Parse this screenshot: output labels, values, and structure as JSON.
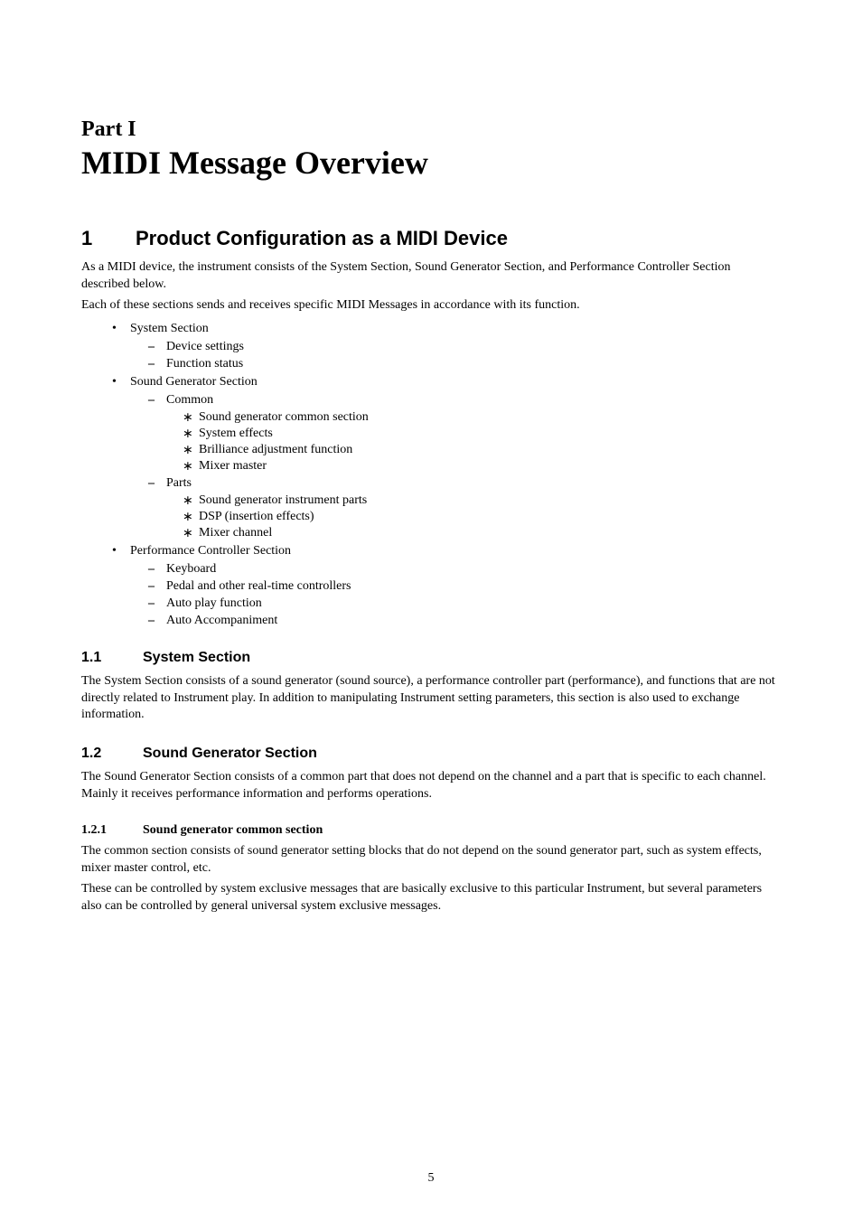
{
  "part": {
    "label": "Part I",
    "title": "MIDI Message Overview"
  },
  "section1": {
    "number": "1",
    "title": "Product Configuration as a MIDI Device",
    "para1": "As a MIDI device, the instrument consists of the System Section, Sound Generator Section, and Performance Controller Section described below.",
    "para2": "Each of these sections sends and receives specific MIDI Messages in accordance with its function.",
    "bullets": {
      "system": {
        "label": "System Section",
        "items": [
          "Device settings",
          "Function status"
        ]
      },
      "soundgen": {
        "label": "Sound Generator Section",
        "common": {
          "label": "Common",
          "items": [
            "Sound generator common section",
            "System effects",
            "Brilliance adjustment function",
            "Mixer master"
          ]
        },
        "parts": {
          "label": "Parts",
          "items": [
            "Sound generator instrument parts",
            "DSP (insertion effects)",
            "Mixer channel"
          ]
        }
      },
      "perf": {
        "label": "Performance Controller Section",
        "items": [
          "Keyboard",
          "Pedal and other real-time controllers",
          "Auto play function",
          "Auto Accompaniment"
        ]
      }
    }
  },
  "section11": {
    "number": "1.1",
    "title": "System Section",
    "para": "The System Section consists of a sound generator (sound source), a performance controller part (performance), and functions that are not directly related to Instrument play. In addition to manipulating Instrument setting parameters, this section is also used to exchange information."
  },
  "section12": {
    "number": "1.2",
    "title": "Sound Generator Section",
    "para": "The Sound Generator Section consists of a common part that does not depend on the channel and a part that is specific to each channel. Mainly it receives performance information and performs operations."
  },
  "section121": {
    "number": "1.2.1",
    "title": "Sound generator common section",
    "para1": "The common section consists of sound generator setting blocks that do not depend on the sound generator part, such as system effects, mixer master control, etc.",
    "para2": "These can be controlled by system exclusive messages that are basically exclusive to this particular Instrument, but several parameters also can be controlled by general universal system exclusive messages."
  },
  "pageNumber": "5"
}
